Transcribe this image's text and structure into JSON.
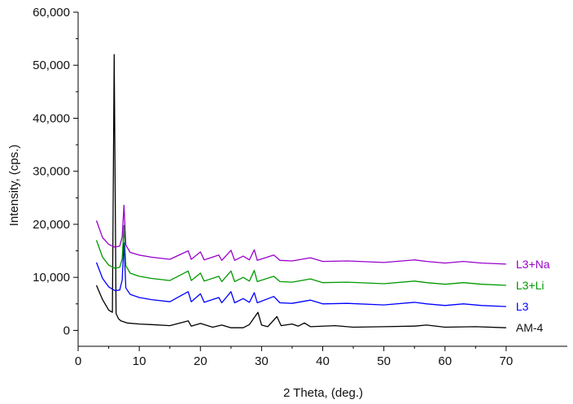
{
  "chart_data": {
    "type": "line",
    "title": "",
    "xlabel": "2 Theta, (deg.)",
    "ylabel": "Intensity, (cps.)",
    "xlim": [
      0,
      80
    ],
    "ylim": [
      -3000,
      60000
    ],
    "x_ticks": [
      0,
      10,
      20,
      30,
      40,
      50,
      60,
      70
    ],
    "x_tick_labels": [
      "0",
      "10",
      "20",
      "30",
      "40",
      "50",
      "60",
      "70"
    ],
    "y_ticks": [
      0,
      10000,
      20000,
      30000,
      40000,
      50000,
      60000
    ],
    "y_tick_labels": [
      "0",
      "10,000",
      "20,000",
      "30,000",
      "40,000",
      "50,000",
      "60,000"
    ],
    "grid": false,
    "legend": "inline labels at right end of each series",
    "series": [
      {
        "name": "AM-4",
        "color": "#000000",
        "baseline": 500,
        "points": [
          [
            3,
            8500
          ],
          [
            4,
            5800
          ],
          [
            5,
            3800
          ],
          [
            5.6,
            3400
          ],
          [
            5.9,
            52000
          ],
          [
            6.2,
            3200
          ],
          [
            6.6,
            2200
          ],
          [
            7,
            1800
          ],
          [
            8,
            1400
          ],
          [
            10,
            1200
          ],
          [
            12,
            1100
          ],
          [
            15,
            900
          ],
          [
            18,
            1800
          ],
          [
            18.5,
            800
          ],
          [
            20,
            1300
          ],
          [
            22,
            600
          ],
          [
            23.5,
            1000
          ],
          [
            25,
            500
          ],
          [
            27,
            500
          ],
          [
            28,
            1100
          ],
          [
            29.4,
            3400
          ],
          [
            30,
            1000
          ],
          [
            31,
            700
          ],
          [
            32.5,
            2600
          ],
          [
            33.2,
            900
          ],
          [
            35,
            1200
          ],
          [
            36,
            800
          ],
          [
            37,
            1400
          ],
          [
            38,
            700
          ],
          [
            42,
            900
          ],
          [
            45,
            600
          ],
          [
            50,
            700
          ],
          [
            55,
            800
          ],
          [
            57,
            1000
          ],
          [
            60,
            600
          ],
          [
            65,
            700
          ],
          [
            70,
            500
          ]
        ]
      },
      {
        "name": "L3",
        "color": "#0000ff",
        "baseline": 4500,
        "points": [
          [
            3,
            12800
          ],
          [
            4,
            9800
          ],
          [
            5,
            8200
          ],
          [
            6,
            7500
          ],
          [
            6.8,
            7600
          ],
          [
            7.2,
            9500
          ],
          [
            7.5,
            16500
          ],
          [
            7.8,
            8000
          ],
          [
            8.5,
            6800
          ],
          [
            10,
            6200
          ],
          [
            12,
            5800
          ],
          [
            15,
            5400
          ],
          [
            18,
            7300
          ],
          [
            18.5,
            5400
          ],
          [
            20,
            6900
          ],
          [
            20.6,
            5300
          ],
          [
            23,
            6200
          ],
          [
            23.5,
            5200
          ],
          [
            25,
            7300
          ],
          [
            25.6,
            5200
          ],
          [
            27,
            6000
          ],
          [
            28,
            5300
          ],
          [
            28.8,
            7100
          ],
          [
            29.3,
            5200
          ],
          [
            32,
            6400
          ],
          [
            33,
            5200
          ],
          [
            35,
            5100
          ],
          [
            38,
            5700
          ],
          [
            40,
            5000
          ],
          [
            44,
            5100
          ],
          [
            50,
            4800
          ],
          [
            55,
            5300
          ],
          [
            57,
            5000
          ],
          [
            60,
            4700
          ],
          [
            63,
            5000
          ],
          [
            66,
            4700
          ],
          [
            70,
            4500
          ]
        ]
      },
      {
        "name": "L3+Li",
        "color": "#009900",
        "baseline": 8500,
        "points": [
          [
            3,
            17000
          ],
          [
            4,
            13800
          ],
          [
            5,
            12300
          ],
          [
            6,
            11700
          ],
          [
            6.8,
            11900
          ],
          [
            7.2,
            13500
          ],
          [
            7.5,
            19800
          ],
          [
            7.8,
            12200
          ],
          [
            8.5,
            10800
          ],
          [
            10,
            10200
          ],
          [
            12,
            9800
          ],
          [
            15,
            9400
          ],
          [
            18,
            11200
          ],
          [
            18.5,
            9400
          ],
          [
            20,
            10800
          ],
          [
            20.6,
            9300
          ],
          [
            23,
            10200
          ],
          [
            23.5,
            9200
          ],
          [
            25,
            11200
          ],
          [
            25.6,
            9200
          ],
          [
            27,
            10000
          ],
          [
            28,
            9300
          ],
          [
            28.8,
            11300
          ],
          [
            29.3,
            9200
          ],
          [
            32,
            10200
          ],
          [
            33,
            9200
          ],
          [
            35,
            9100
          ],
          [
            38,
            9700
          ],
          [
            40,
            9000
          ],
          [
            44,
            9100
          ],
          [
            50,
            8800
          ],
          [
            55,
            9300
          ],
          [
            57,
            9000
          ],
          [
            60,
            8700
          ],
          [
            63,
            9000
          ],
          [
            66,
            8700
          ],
          [
            70,
            8500
          ]
        ]
      },
      {
        "name": "L3+Na",
        "color": "#9900cc",
        "baseline": 12500,
        "points": [
          [
            3,
            20700
          ],
          [
            4,
            17500
          ],
          [
            5,
            16200
          ],
          [
            6,
            15700
          ],
          [
            6.8,
            15900
          ],
          [
            7.2,
            17600
          ],
          [
            7.5,
            23600
          ],
          [
            7.8,
            16100
          ],
          [
            8.5,
            14700
          ],
          [
            10,
            14200
          ],
          [
            12,
            13800
          ],
          [
            15,
            13400
          ],
          [
            18,
            15000
          ],
          [
            18.5,
            13400
          ],
          [
            20,
            14800
          ],
          [
            20.6,
            13300
          ],
          [
            23,
            14200
          ],
          [
            23.5,
            13200
          ],
          [
            25,
            15100
          ],
          [
            25.6,
            13200
          ],
          [
            27,
            14000
          ],
          [
            28,
            13300
          ],
          [
            28.8,
            15200
          ],
          [
            29.3,
            13200
          ],
          [
            32,
            14200
          ],
          [
            33,
            13200
          ],
          [
            35,
            13100
          ],
          [
            38,
            13700
          ],
          [
            40,
            13000
          ],
          [
            44,
            13100
          ],
          [
            50,
            12800
          ],
          [
            55,
            13300
          ],
          [
            57,
            13000
          ],
          [
            60,
            12700
          ],
          [
            63,
            13000
          ],
          [
            66,
            12700
          ],
          [
            70,
            12500
          ]
        ]
      }
    ]
  }
}
